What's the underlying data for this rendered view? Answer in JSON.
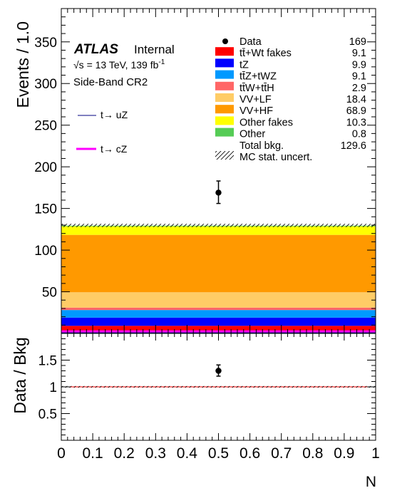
{
  "chart_data": [
    {
      "panel": "upper",
      "type": "bar",
      "stacked": true,
      "ylabel": "Events / 1.0",
      "ylim": [
        0,
        390
      ],
      "xlim": [
        0,
        1
      ],
      "yticks": [
        "50",
        "100",
        "150",
        "200",
        "250",
        "300",
        "350"
      ],
      "atlas_label": "ATLAS",
      "atlas_status": "Internal",
      "energy_text": "√s = 13 TeV, 139 fb",
      "energy_sup": "-1",
      "region": "Side-Band CR2",
      "series": [
        {
          "name": "tt̄+Wt fakes",
          "value": 9.1,
          "value_text": "9.1",
          "color": "#ff0000"
        },
        {
          "name": "tZ",
          "value": 9.9,
          "value_text": "9.9",
          "color": "#0000ff"
        },
        {
          "name": "tt̄Z+tWZ",
          "value": 9.1,
          "value_text": "9.1",
          "color": "#0099ff"
        },
        {
          "name": "tt̄W+tt̄H",
          "value": 2.9,
          "value_text": "2.9",
          "color": "#ff6666"
        },
        {
          "name": "VV+LF",
          "value": 18.4,
          "value_text": "18.4",
          "color": "#ffcc66"
        },
        {
          "name": "VV+HF",
          "value": 68.9,
          "value_text": "68.9",
          "color": "#ff9900"
        },
        {
          "name": "Other fakes",
          "value": 10.3,
          "value_text": "10.3",
          "color": "#ffff00"
        },
        {
          "name": "Other",
          "value": 0.8,
          "value_text": "0.8",
          "color": "#55cc55"
        }
      ],
      "data": {
        "name": "Data",
        "x": 0.5,
        "y": 169,
        "y_text": "169",
        "err_low": 13,
        "err_high": 14
      },
      "total": {
        "name": "Total bkg.",
        "value": 129.6,
        "value_text": "129.6"
      },
      "uncert": {
        "name": "MC stat. uncert.",
        "low": 127.6,
        "high": 131.6
      },
      "signals": [
        {
          "name": "t→ uZ",
          "value": 0.9,
          "color": "#000080"
        },
        {
          "name": "t→ cZ",
          "value": 2.5,
          "color": "#ff00ff"
        }
      ]
    },
    {
      "panel": "lower",
      "type": "scatter",
      "ylabel": "Data / Bkg",
      "xlabel": "N",
      "ylim": [
        0,
        2
      ],
      "xlim": [
        0,
        1
      ],
      "yticks": [
        "0.5",
        "1",
        "1.5"
      ],
      "xticks": [
        "0",
        "0.1",
        "0.2",
        "0.3",
        "0.4",
        "0.5",
        "0.6",
        "0.7",
        "0.8",
        "0.9",
        "1"
      ],
      "points": [
        {
          "x": 0.5,
          "y": 1.3,
          "err_low": 0.1,
          "err_high": 0.11
        }
      ],
      "reference_line": 1.0,
      "reference_color": "#ff0000"
    }
  ]
}
